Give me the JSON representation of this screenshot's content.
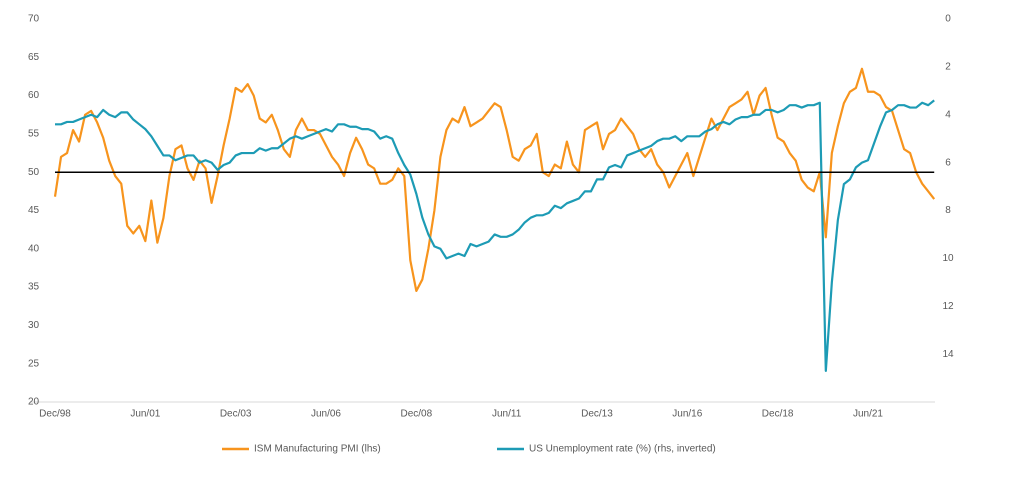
{
  "chart_data": {
    "type": "line",
    "categories": [
      "Dec/98",
      null,
      null,
      null,
      null,
      null,
      null,
      null,
      null,
      null,
      null,
      null,
      null,
      null,
      null,
      "Jun/01",
      null,
      null,
      null,
      null,
      null,
      null,
      null,
      null,
      null,
      null,
      null,
      null,
      null,
      null,
      "Dec/03",
      null,
      null,
      null,
      null,
      null,
      null,
      null,
      null,
      null,
      null,
      null,
      null,
      null,
      null,
      "Jun/06",
      null,
      null,
      null,
      null,
      null,
      null,
      null,
      null,
      null,
      null,
      null,
      null,
      null,
      null,
      "Dec/08",
      null,
      null,
      null,
      null,
      null,
      null,
      null,
      null,
      null,
      null,
      null,
      null,
      null,
      null,
      "Jun/11",
      null,
      null,
      null,
      null,
      null,
      null,
      null,
      null,
      null,
      null,
      null,
      null,
      null,
      null,
      "Dec/13",
      null,
      null,
      null,
      null,
      null,
      null,
      null,
      null,
      null,
      null,
      null,
      null,
      null,
      null,
      "Jun/16",
      null,
      null,
      null,
      null,
      null,
      null,
      null,
      null,
      null,
      null,
      null,
      null,
      null,
      null,
      "Dec/18",
      null,
      null,
      null,
      null,
      null,
      null,
      null,
      null,
      null,
      null,
      null,
      null,
      null,
      null,
      "Jun/21",
      null,
      null,
      null,
      null,
      null,
      null,
      null,
      null,
      null,
      null,
      null
    ],
    "series": [
      {
        "name": "ISM Manufacturing PMI (lhs)",
        "color": "#f7941d",
        "values": [
          46.8,
          52,
          52.5,
          55.5,
          54,
          57.5,
          58,
          56.5,
          54.5,
          51.5,
          49.5,
          48.5,
          43,
          42,
          43,
          41,
          46.3,
          40.8,
          44,
          49.5,
          53,
          53.5,
          50.5,
          49,
          51.5,
          50.5,
          46,
          49.5,
          53.5,
          57,
          61,
          60.5,
          61.5,
          60,
          57,
          56.5,
          57.5,
          55.5,
          53,
          52,
          55.5,
          57,
          55.5,
          55.5,
          55,
          53.5,
          52,
          51,
          49.5,
          52.5,
          54.5,
          53,
          51,
          50.5,
          48.5,
          48.5,
          49,
          50.5,
          49.5,
          38.5,
          34.5,
          36,
          40,
          45,
          52,
          55.5,
          57,
          56.5,
          58.5,
          56,
          56.5,
          57,
          58,
          59,
          58.5,
          55.5,
          52,
          51.5,
          53,
          53.5,
          55,
          50,
          49.5,
          51,
          50.5,
          54,
          51,
          50,
          55.5,
          56,
          56.5,
          53,
          55,
          55.5,
          57,
          56,
          55,
          53,
          52,
          53,
          51,
          50,
          48,
          49.5,
          51,
          52.5,
          49.5,
          52,
          54.5,
          57,
          55.5,
          57,
          58.5,
          59,
          59.5,
          60.5,
          57.5,
          60,
          61,
          57.5,
          54.5,
          54,
          52.5,
          51.5,
          49,
          48,
          47.5,
          50,
          41.5,
          52.5,
          56,
          59,
          60.5,
          61,
          63.5,
          60.5,
          60.5,
          60,
          58.5,
          58,
          55.5,
          53,
          52.5,
          50,
          48.5,
          47.5,
          46.5
        ]
      },
      {
        "name": "US Unemployment rate (%) (rhs, inverted)",
        "color": "#1d9bb5",
        "axis": "y2",
        "values": [
          4.4,
          4.4,
          4.3,
          4.3,
          4.2,
          4.1,
          4.0,
          4.1,
          3.8,
          4.0,
          4.1,
          3.9,
          3.9,
          4.2,
          4.4,
          4.6,
          4.9,
          5.3,
          5.7,
          5.7,
          5.9,
          5.8,
          5.7,
          5.7,
          6.0,
          5.9,
          6.0,
          6.3,
          6.1,
          6.0,
          5.7,
          5.6,
          5.6,
          5.6,
          5.4,
          5.5,
          5.4,
          5.4,
          5.2,
          5.0,
          4.9,
          5.0,
          4.9,
          4.8,
          4.7,
          4.6,
          4.7,
          4.4,
          4.4,
          4.5,
          4.5,
          4.6,
          4.6,
          4.7,
          5.0,
          4.9,
          5.0,
          5.6,
          6.1,
          6.5,
          7.3,
          8.3,
          9.0,
          9.5,
          9.6,
          10.0,
          9.9,
          9.8,
          9.9,
          9.4,
          9.5,
          9.4,
          9.3,
          9.0,
          9.1,
          9.1,
          9.0,
          8.8,
          8.5,
          8.3,
          8.2,
          8.2,
          8.1,
          7.8,
          7.9,
          7.7,
          7.6,
          7.5,
          7.2,
          7.2,
          6.7,
          6.7,
          6.2,
          6.1,
          6.2,
          5.7,
          5.6,
          5.5,
          5.4,
          5.3,
          5.1,
          5.0,
          5.0,
          4.9,
          5.1,
          4.9,
          4.9,
          4.9,
          4.7,
          4.6,
          4.4,
          4.3,
          4.4,
          4.2,
          4.1,
          4.1,
          4.0,
          4.0,
          3.8,
          3.8,
          3.9,
          3.8,
          3.6,
          3.6,
          3.7,
          3.6,
          3.6,
          3.5,
          14.7,
          11.0,
          8.4,
          6.9,
          6.7,
          6.2,
          6.0,
          5.9,
          5.2,
          4.5,
          3.9,
          3.8,
          3.6,
          3.6,
          3.7,
          3.7,
          3.5,
          3.6,
          3.4
        ]
      }
    ],
    "ylim": [
      20,
      70
    ],
    "yticks": [
      20,
      25,
      30,
      35,
      40,
      45,
      50,
      55,
      60,
      65,
      70
    ],
    "y2lim": [
      16,
      0
    ],
    "y2ticks": [
      0,
      2,
      4,
      6,
      8,
      10,
      12,
      14
    ],
    "reference_line": 50,
    "grid": false
  }
}
